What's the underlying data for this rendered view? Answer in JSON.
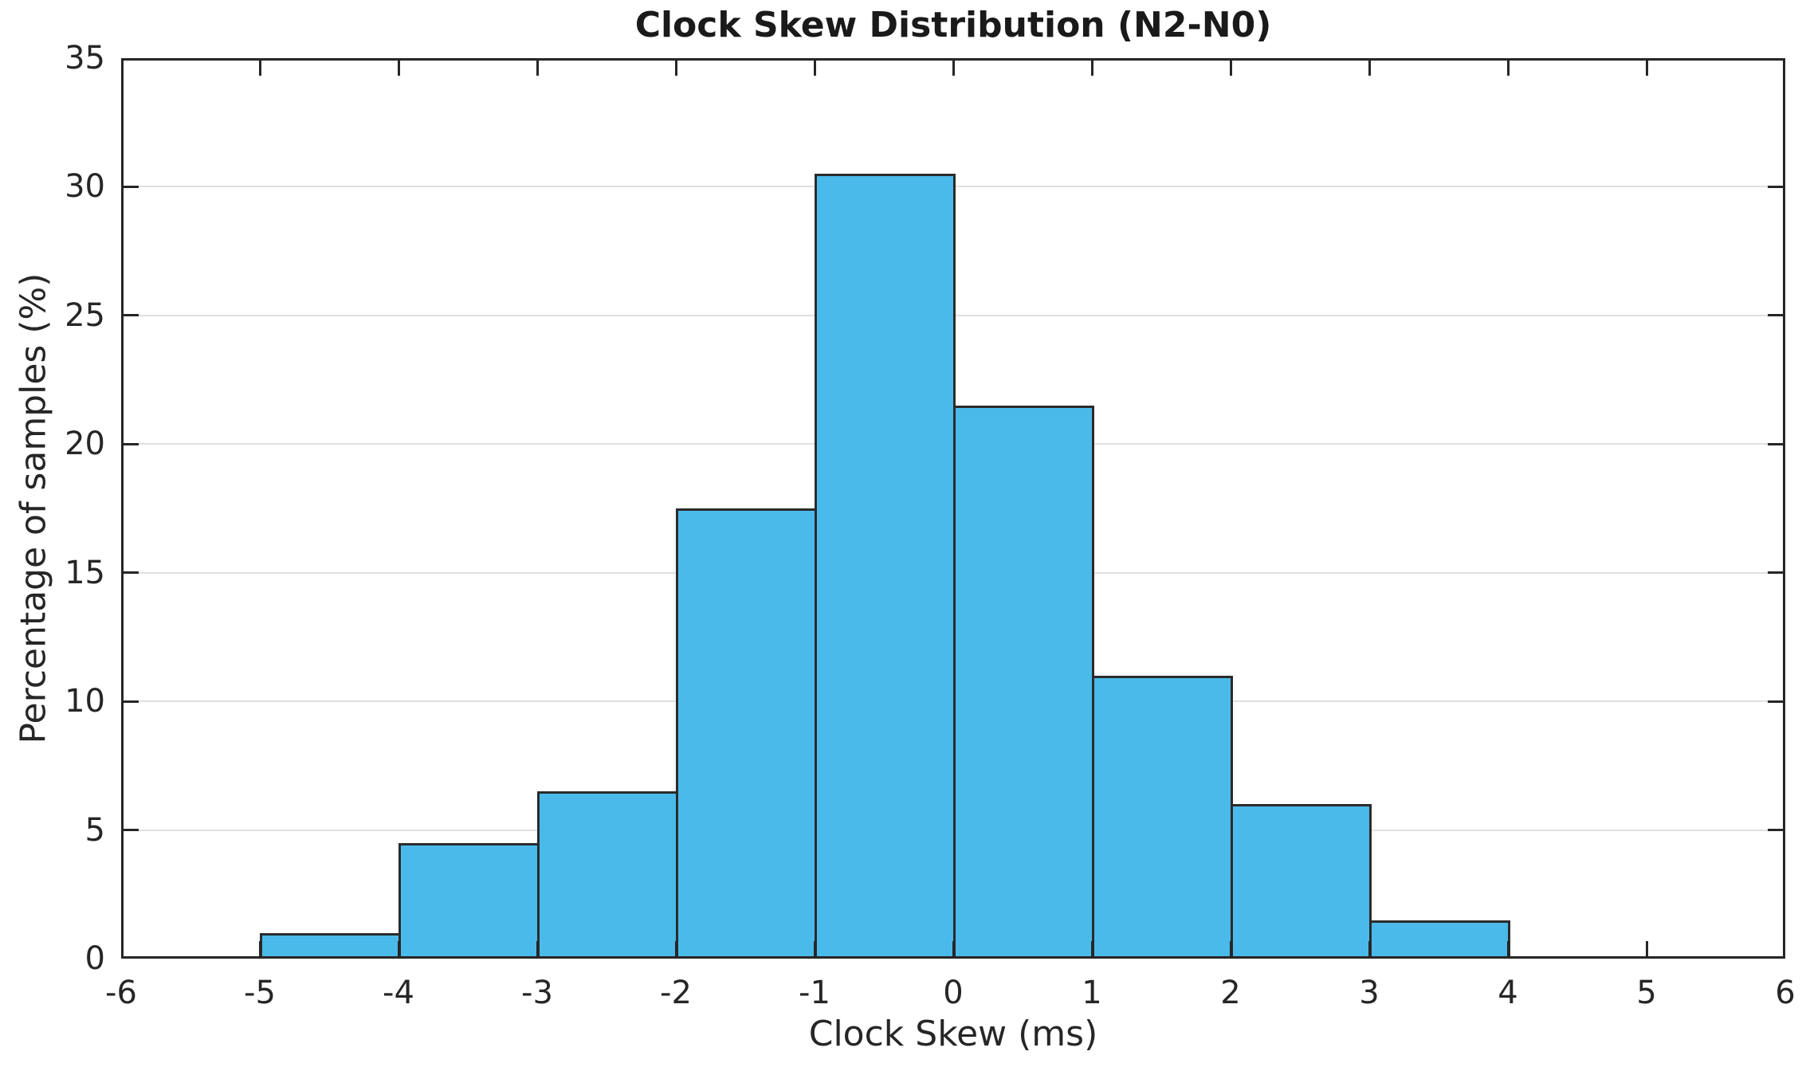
{
  "figure": {
    "title": "Clock Skew Distribution (N2-N0)"
  },
  "chart_data": {
    "type": "bar",
    "subtype": "histogram",
    "title": "Clock Skew Distribution (N2-N0)",
    "xlabel": "Clock Skew (ms)",
    "ylabel": "Percentage of samples (%)",
    "xlim": [
      -6,
      6
    ],
    "ylim": [
      0,
      35
    ],
    "x_ticks": [
      -6,
      -5,
      -4,
      -3,
      -2,
      -1,
      0,
      1,
      2,
      3,
      4,
      5,
      6
    ],
    "y_ticks": [
      0,
      5,
      10,
      15,
      20,
      25,
      30,
      35
    ],
    "bin_width_ms": 1,
    "bins": [
      {
        "range": [
          -5,
          -4
        ],
        "value": 1.0
      },
      {
        "range": [
          -4,
          -3
        ],
        "value": 4.5
      },
      {
        "range": [
          -3,
          -2
        ],
        "value": 6.5
      },
      {
        "range": [
          -2,
          -1
        ],
        "value": 17.5
      },
      {
        "range": [
          -1,
          0
        ],
        "value": 30.5
      },
      {
        "range": [
          0,
          1
        ],
        "value": 21.5
      },
      {
        "range": [
          1,
          2
        ],
        "value": 11.0
      },
      {
        "range": [
          2,
          3
        ],
        "value": 6.0
      },
      {
        "range": [
          3,
          4
        ],
        "value": 1.5
      }
    ],
    "grid": "horizontal",
    "legend": null,
    "colors": {
      "bar_fill": "#4ABAEA",
      "bar_edge": "#2B2B2B",
      "axis": "#262626",
      "grid_line": "#E0E0E0",
      "text": "#262626",
      "title_text": "#1A1A1A",
      "background": "#FFFFFF"
    }
  }
}
